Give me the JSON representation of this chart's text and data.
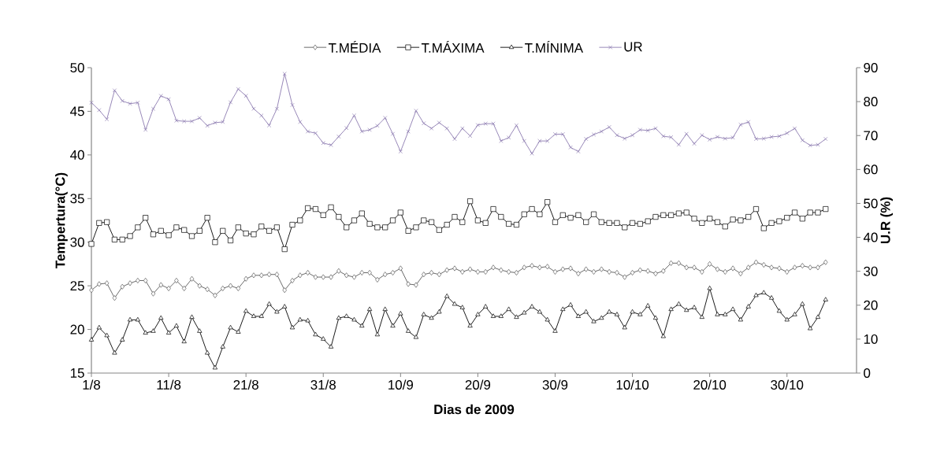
{
  "chart_data": {
    "type": "line",
    "xlabel": "Dias de 2009",
    "ylabel": "Tempertura(°C)",
    "y2label": "U.R (%)",
    "legend": "top",
    "xlim": [
      "2009-08-01",
      "2009-11-08"
    ],
    "xticks": [
      {
        "value": "2009-08-01",
        "label": "1/8"
      },
      {
        "value": "2009-08-11",
        "label": "11/8"
      },
      {
        "value": "2009-08-21",
        "label": "21/8"
      },
      {
        "value": "2009-08-31",
        "label": "31/8"
      },
      {
        "value": "2009-09-10",
        "label": "10/9"
      },
      {
        "value": "2009-09-20",
        "label": "20/9"
      },
      {
        "value": "2009-09-30",
        "label": "30/9"
      },
      {
        "value": "2009-10-10",
        "label": "10/10"
      },
      {
        "value": "2009-10-20",
        "label": "20/10"
      },
      {
        "value": "2009-10-30",
        "label": "30/10"
      }
    ],
    "ylim": [
      15,
      50
    ],
    "yticks": [
      15,
      20,
      25,
      30,
      35,
      40,
      45,
      50
    ],
    "y2lim": [
      0,
      90
    ],
    "y2ticks": [
      0,
      10,
      20,
      30,
      40,
      50,
      60,
      70,
      80,
      90
    ],
    "x": [
      "2009-08-01",
      "2009-08-02",
      "2009-08-03",
      "2009-08-04",
      "2009-08-05",
      "2009-08-06",
      "2009-08-07",
      "2009-08-08",
      "2009-08-09",
      "2009-08-10",
      "2009-08-11",
      "2009-08-12",
      "2009-08-13",
      "2009-08-14",
      "2009-08-15",
      "2009-08-16",
      "2009-08-17",
      "2009-08-18",
      "2009-08-19",
      "2009-08-20",
      "2009-08-21",
      "2009-08-22",
      "2009-08-23",
      "2009-08-24",
      "2009-08-25",
      "2009-08-26",
      "2009-08-27",
      "2009-08-28",
      "2009-08-29",
      "2009-08-30",
      "2009-08-31",
      "2009-09-01",
      "2009-09-02",
      "2009-09-03",
      "2009-09-04",
      "2009-09-05",
      "2009-09-06",
      "2009-09-07",
      "2009-09-08",
      "2009-09-09",
      "2009-09-10",
      "2009-09-11",
      "2009-09-12",
      "2009-09-13",
      "2009-09-14",
      "2009-09-15",
      "2009-09-16",
      "2009-09-17",
      "2009-09-18",
      "2009-09-19",
      "2009-09-20",
      "2009-09-21",
      "2009-09-22",
      "2009-09-23",
      "2009-09-24",
      "2009-09-25",
      "2009-09-26",
      "2009-09-27",
      "2009-09-28",
      "2009-09-29",
      "2009-09-30",
      "2009-10-01",
      "2009-10-02",
      "2009-10-03",
      "2009-10-04",
      "2009-10-05",
      "2009-10-06",
      "2009-10-07",
      "2009-10-08",
      "2009-10-09",
      "2009-10-10",
      "2009-10-11",
      "2009-10-12",
      "2009-10-13",
      "2009-10-14",
      "2009-10-15",
      "2009-10-16",
      "2009-10-17",
      "2009-10-18",
      "2009-10-19",
      "2009-10-20",
      "2009-10-21",
      "2009-10-22",
      "2009-10-23",
      "2009-10-24",
      "2009-10-25",
      "2009-10-26",
      "2009-10-27",
      "2009-10-28",
      "2009-10-29",
      "2009-10-30",
      "2009-10-31",
      "2009-11-01",
      "2009-11-02",
      "2009-11-03",
      "2009-11-04"
    ],
    "series": [
      {
        "name": "T.MÉDIA",
        "color": "#595959",
        "marker": "diamond",
        "values": [
          24.5,
          25.2,
          25.3,
          23.6,
          24.9,
          25.3,
          25.6,
          25.6,
          24.1,
          25.1,
          24.7,
          25.6,
          24.7,
          25.8,
          25.0,
          24.6,
          23.9,
          24.7,
          25.0,
          24.7,
          25.8,
          26.2,
          26.2,
          26.3,
          26.3,
          24.5,
          25.6,
          26.2,
          26.5,
          26.0,
          26.0,
          26.0,
          26.7,
          26.2,
          26.0,
          26.5,
          26.5,
          25.7,
          26.3,
          26.5,
          27.0,
          25.2,
          25.1,
          26.3,
          26.5,
          26.3,
          26.8,
          27.0,
          26.6,
          26.9,
          26.6,
          26.6,
          27.1,
          26.8,
          26.6,
          26.5,
          27.1,
          27.3,
          27.1,
          27.2,
          26.6,
          26.9,
          27.0,
          26.4,
          26.9,
          26.6,
          26.9,
          26.6,
          26.5,
          26.0,
          26.5,
          26.8,
          26.7,
          26.4,
          26.7,
          27.6,
          27.6,
          27.1,
          27.1,
          26.6,
          27.5,
          26.9,
          26.6,
          27.0,
          26.4,
          27.1,
          27.7,
          27.4,
          27.1,
          27.0,
          26.6,
          27.1,
          27.3,
          27.1,
          27.1,
          27.7
        ]
      },
      {
        "name": "T.MÁXIMA",
        "color": "#000000",
        "marker": "square",
        "values": [
          29.8,
          32.2,
          32.3,
          30.3,
          30.3,
          30.7,
          31.7,
          32.8,
          30.9,
          31.3,
          30.8,
          31.7,
          31.4,
          30.7,
          31.3,
          32.8,
          30.0,
          31.3,
          30.2,
          31.7,
          31.0,
          30.9,
          31.8,
          31.3,
          31.7,
          29.2,
          32.0,
          32.5,
          33.9,
          33.8,
          33.1,
          34.0,
          32.9,
          31.7,
          32.5,
          33.3,
          32.1,
          31.7,
          31.7,
          32.5,
          33.4,
          31.3,
          31.7,
          32.5,
          32.3,
          31.4,
          32.0,
          32.9,
          32.3,
          34.7,
          32.5,
          32.2,
          33.8,
          32.9,
          32.1,
          32.0,
          33.2,
          33.8,
          33.2,
          34.6,
          32.3,
          33.1,
          32.8,
          33.1,
          32.3,
          33.2,
          32.3,
          32.2,
          32.2,
          31.7,
          32.2,
          32.1,
          32.4,
          32.9,
          33.1,
          33.1,
          33.3,
          33.4,
          32.7,
          32.2,
          32.7,
          32.3,
          31.8,
          32.6,
          32.5,
          32.9,
          33.8,
          31.6,
          32.2,
          32.4,
          32.8,
          33.4,
          32.7,
          33.4,
          33.4,
          33.8
        ]
      },
      {
        "name": "T.MÍNIMA",
        "color": "#000000",
        "marker": "triangle",
        "values": [
          18.8,
          20.2,
          19.3,
          17.3,
          18.8,
          21.1,
          21.1,
          19.6,
          19.8,
          21.3,
          19.6,
          20.4,
          18.6,
          21.4,
          19.8,
          17.3,
          15.6,
          18.0,
          20.2,
          19.7,
          22.1,
          21.5,
          21.5,
          22.9,
          22.0,
          22.6,
          20.2,
          21.1,
          21.0,
          19.4,
          18.9,
          18.0,
          21.3,
          21.5,
          21.1,
          20.4,
          22.3,
          19.4,
          22.3,
          20.4,
          21.8,
          19.8,
          19.1,
          21.7,
          21.3,
          22.0,
          23.8,
          22.9,
          22.5,
          20.4,
          21.7,
          22.6,
          21.5,
          21.5,
          22.3,
          21.4,
          21.9,
          22.6,
          22.0,
          21.1,
          19.8,
          22.3,
          22.8,
          21.5,
          22.0,
          20.9,
          21.3,
          22.0,
          21.7,
          20.2,
          22.0,
          21.7,
          22.7,
          21.3,
          19.2,
          22.3,
          22.9,
          22.2,
          22.5,
          21.4,
          24.7,
          21.7,
          21.7,
          22.3,
          21.1,
          22.6,
          23.9,
          24.2,
          23.6,
          22.1,
          21.1,
          21.7,
          22.9,
          20.1,
          21.4,
          23.4
        ]
      },
      {
        "name": "UR",
        "color": "#8c7ab0",
        "marker": "cross",
        "axis": "y2",
        "values": [
          79.7,
          77.5,
          74.8,
          83.3,
          80.2,
          79.4,
          79.7,
          71.7,
          77.9,
          81.7,
          80.7,
          74.4,
          74.2,
          74.2,
          75.2,
          72.9,
          73.8,
          74.0,
          79.8,
          83.7,
          81.7,
          77.9,
          75.9,
          73.0,
          77.9,
          88.2,
          79.0,
          74.0,
          71.2,
          70.7,
          67.8,
          67.2,
          69.7,
          72.2,
          75.9,
          71.2,
          71.7,
          72.9,
          75.2,
          70.5,
          65.3,
          71.2,
          77.3,
          73.6,
          72.1,
          73.8,
          72.1,
          69.0,
          72.1,
          69.9,
          73.1,
          73.5,
          73.5,
          68.4,
          69.4,
          73.0,
          68.4,
          64.7,
          68.4,
          68.4,
          70.4,
          70.4,
          66.5,
          65.3,
          69.0,
          70.3,
          71.2,
          72.5,
          70.1,
          69.1,
          70.1,
          71.7,
          71.5,
          72.1,
          69.8,
          69.5,
          67.3,
          70.5,
          67.6,
          70.1,
          68.8,
          69.6,
          69.1,
          69.4,
          73.2,
          74.0,
          69.0,
          69.1,
          69.6,
          69.8,
          70.7,
          72.1,
          68.6,
          67.1,
          67.3,
          69.0
        ]
      }
    ]
  }
}
